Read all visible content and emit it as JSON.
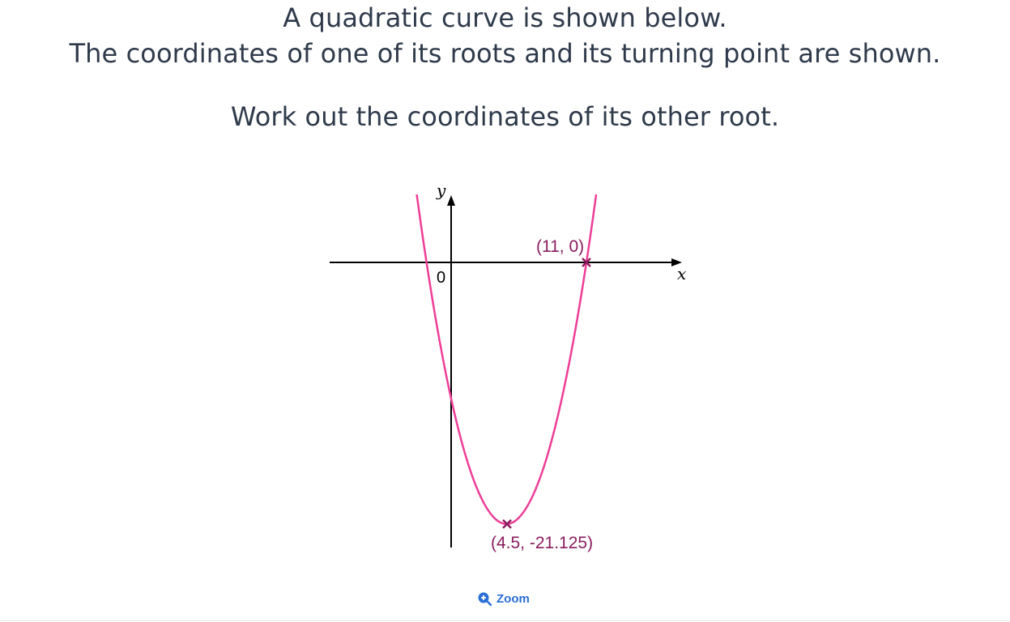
{
  "question": {
    "line1": "A quadratic curve is shown below.",
    "line2": "The coordinates of one of its roots and its turning point are shown.",
    "line3": "Work out the coordinates of its other root."
  },
  "graph": {
    "curve_color": "#ee3d96",
    "marker_color": "#8a1c5e",
    "y_axis_letter": "y",
    "x_axis_letter": "x",
    "origin_label": "0",
    "root_label": "(11, 0)",
    "turning_point_label": "(4.5, -21.125)",
    "root": [
      11,
      0
    ],
    "turning_point": [
      4.5,
      -21.125
    ]
  },
  "zoom": {
    "label": "Zoom",
    "icon": "zoom-in-icon"
  }
}
